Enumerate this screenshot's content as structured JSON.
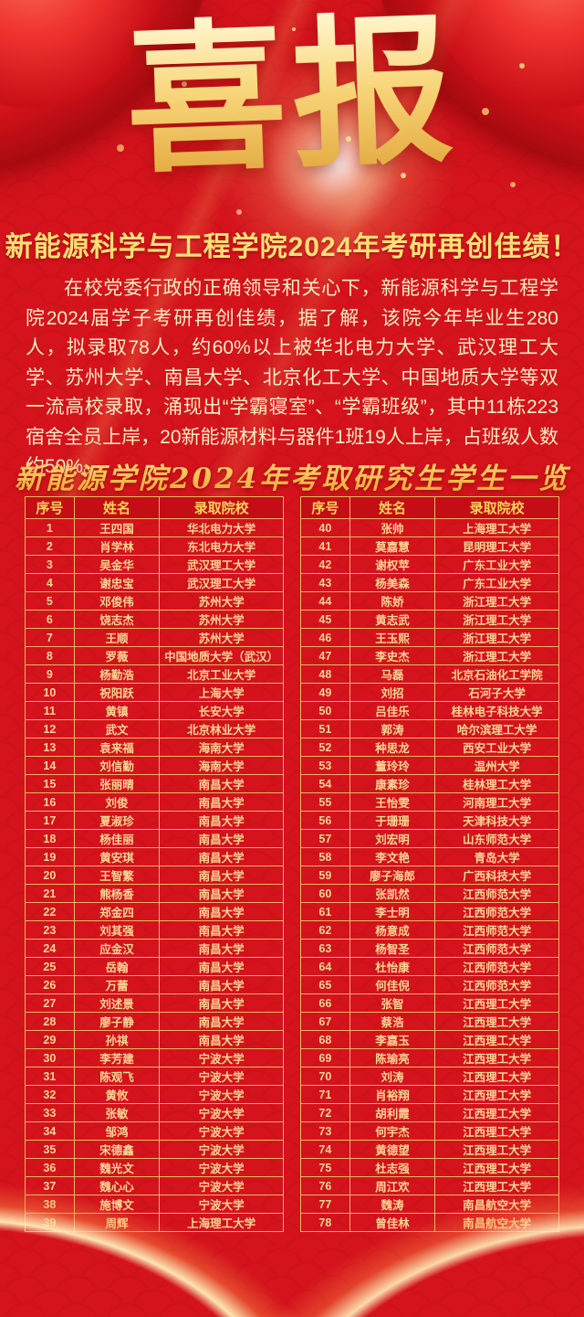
{
  "poster": {
    "title": "喜报",
    "headline": "新能源科学与工程学院2024年考研再创佳绩！",
    "paragraph": "在校党委行政的正确领导和关心下，新能源科学与工程学院2024届学子考研再创佳绩，据了解，该院今年毕业生280人，拟录取78人，约60%以上被华北电力大学、武汉理工大学、苏州大学、南昌大学、北京化工大学、中国地质大学等双一流高校录取，涌现出“学霸寝室”、“学霸班级”，其中11栋223宿舍全员上岸，20新能源材料与器件1班19人上岸，占班级人数约50%。",
    "subtitle": "新能源学院2024年考取研究生学生一览"
  },
  "colors": {
    "background_red": "#d4131c",
    "header_red": "#c40d14",
    "table_border_gold": "#e9b763",
    "cell_text_gold": "#ffd794",
    "headline_yellow": "#ffe176",
    "title_gold": "#f8d77c"
  },
  "table": {
    "headers": [
      "序号",
      "姓名",
      "录取院校"
    ],
    "left_rows": [
      [
        "1",
        "王四国",
        "华北电力大学"
      ],
      [
        "2",
        "肖学林",
        "东北电力大学"
      ],
      [
        "3",
        "吴金华",
        "武汉理工大学"
      ],
      [
        "4",
        "谢忠宝",
        "武汉理工大学"
      ],
      [
        "5",
        "邓俊伟",
        "苏州大学"
      ],
      [
        "6",
        "饶志杰",
        "苏州大学"
      ],
      [
        "7",
        "王顺",
        "苏州大学"
      ],
      [
        "8",
        "罗薇",
        "中国地质大学（武汉）"
      ],
      [
        "9",
        "杨勤浩",
        "北京工业大学"
      ],
      [
        "10",
        "祝阳跃",
        "上海大学"
      ],
      [
        "11",
        "黄镇",
        "长安大学"
      ],
      [
        "12",
        "武文",
        "北京林业大学"
      ],
      [
        "13",
        "袁来福",
        "海南大学"
      ],
      [
        "14",
        "刘信勤",
        "海南大学"
      ],
      [
        "15",
        "张丽晴",
        "南昌大学"
      ],
      [
        "16",
        "刘俊",
        "南昌大学"
      ],
      [
        "17",
        "夏淑珍",
        "南昌大学"
      ],
      [
        "18",
        "杨佳丽",
        "南昌大学"
      ],
      [
        "19",
        "黄安琪",
        "南昌大学"
      ],
      [
        "20",
        "王智繁",
        "南昌大学"
      ],
      [
        "21",
        "熊杨香",
        "南昌大学"
      ],
      [
        "22",
        "郑金四",
        "南昌大学"
      ],
      [
        "23",
        "刘其强",
        "南昌大学"
      ],
      [
        "24",
        "应金汉",
        "南昌大学"
      ],
      [
        "25",
        "岳翰",
        "南昌大学"
      ],
      [
        "26",
        "万蕾",
        "南昌大学"
      ],
      [
        "27",
        "刘述景",
        "南昌大学"
      ],
      [
        "28",
        "廖子静",
        "南昌大学"
      ],
      [
        "29",
        "孙祺",
        "南昌大学"
      ],
      [
        "30",
        "李芳建",
        "宁波大学"
      ],
      [
        "31",
        "陈观飞",
        "宁波大学"
      ],
      [
        "32",
        "黄攸",
        "宁波大学"
      ],
      [
        "33",
        "张敏",
        "宁波大学"
      ],
      [
        "34",
        "邹鸿",
        "宁波大学"
      ],
      [
        "35",
        "宋德鑫",
        "宁波大学"
      ],
      [
        "36",
        "魏光文",
        "宁波大学"
      ],
      [
        "37",
        "魏心心",
        "宁波大学"
      ],
      [
        "38",
        "施博文",
        "宁波大学"
      ],
      [
        "39",
        "周辉",
        "上海理工大学"
      ]
    ],
    "right_rows": [
      [
        "40",
        "张帅",
        "上海理工大学"
      ],
      [
        "41",
        "莫嘉慧",
        "昆明理工大学"
      ],
      [
        "42",
        "谢权苹",
        "广东工业大学"
      ],
      [
        "43",
        "杨美森",
        "广东工业大学"
      ],
      [
        "44",
        "陈娇",
        "浙江理工大学"
      ],
      [
        "45",
        "黄志武",
        "浙江理工大学"
      ],
      [
        "46",
        "王玉熙",
        "浙江理工大学"
      ],
      [
        "47",
        "李史杰",
        "浙江理工大学"
      ],
      [
        "48",
        "马磊",
        "北京石油化工学院"
      ],
      [
        "49",
        "刘招",
        "石河子大学"
      ],
      [
        "50",
        "吕佳乐",
        "桂林电子科技大学"
      ],
      [
        "51",
        "郭涛",
        "哈尔滨理工大学"
      ],
      [
        "52",
        "种思龙",
        "西安工业大学"
      ],
      [
        "53",
        "董玲玲",
        "温州大学"
      ],
      [
        "54",
        "康素珍",
        "桂林理工大学"
      ],
      [
        "55",
        "王怡雯",
        "河南理工大学"
      ],
      [
        "56",
        "于珊珊",
        "天津科技大学"
      ],
      [
        "57",
        "刘宏明",
        "山东师范大学"
      ],
      [
        "58",
        "李文艳",
        "青岛大学"
      ],
      [
        "59",
        "廖子海郎",
        "广西科技大学"
      ],
      [
        "60",
        "张凯然",
        "江西师范大学"
      ],
      [
        "61",
        "李士明",
        "江西师范大学"
      ],
      [
        "62",
        "杨意成",
        "江西师范大学"
      ],
      [
        "63",
        "杨智圣",
        "江西师范大学"
      ],
      [
        "64",
        "杜怡康",
        "江西师范大学"
      ],
      [
        "65",
        "何佳倪",
        "江西师范大学"
      ],
      [
        "66",
        "张智",
        "江西理工大学"
      ],
      [
        "67",
        "蔡浩",
        "江西理工大学"
      ],
      [
        "68",
        "李嘉玉",
        "江西理工大学"
      ],
      [
        "69",
        "陈瑜亮",
        "江西理工大学"
      ],
      [
        "70",
        "刘涛",
        "江西理工大学"
      ],
      [
        "71",
        "肖裕翔",
        "江西理工大学"
      ],
      [
        "72",
        "胡利霞",
        "江西理工大学"
      ],
      [
        "73",
        "何宇杰",
        "江西理工大学"
      ],
      [
        "74",
        "黄德望",
        "江西理工大学"
      ],
      [
        "75",
        "杜志强",
        "江西理工大学"
      ],
      [
        "76",
        "周江欢",
        "江西理工大学"
      ],
      [
        "77",
        "魏涛",
        "南昌航空大学"
      ],
      [
        "78",
        "曾佳林",
        "南昌航空大学"
      ]
    ]
  }
}
